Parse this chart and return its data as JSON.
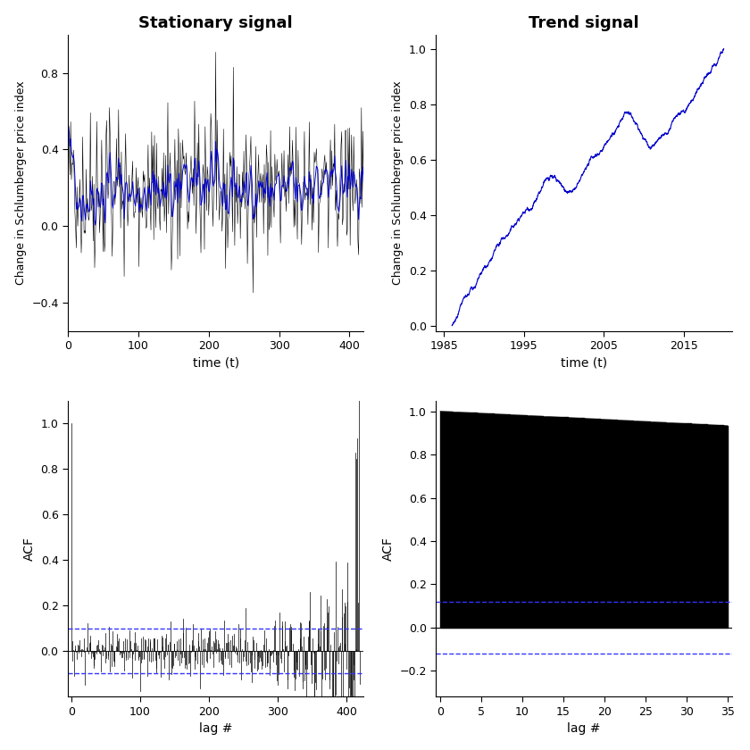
{
  "title_stationary": "Stationary signal",
  "title_trend": "Trend signal",
  "ylabel_top": "Change in Schlumberger price index",
  "xlabel_top": "time (t)",
  "xlabel_acf": "lag #",
  "ylabel_acf": "ACF",
  "stationary_n": 420,
  "stationary_ylim": [
    -0.55,
    1.0
  ],
  "stationary_xlim": [
    0,
    420
  ],
  "stationary_yticks": [
    -0.4,
    0.0,
    0.4,
    0.8
  ],
  "stationary_xticks": [
    0,
    100,
    200,
    300,
    400
  ],
  "trend_xlim": [
    1984,
    2021
  ],
  "trend_ylim": [
    -0.02,
    1.05
  ],
  "trend_xticks": [
    1985,
    1995,
    2005,
    2015
  ],
  "trend_yticks": [
    0.0,
    0.2,
    0.4,
    0.6,
    0.8,
    1.0
  ],
  "acf_stat_ylim": [
    -0.2,
    1.1
  ],
  "acf_stat_xlim": [
    -5,
    425
  ],
  "acf_stat_yticks": [
    0.0,
    0.2,
    0.4,
    0.6,
    0.8,
    1.0
  ],
  "acf_stat_xticks": [
    0,
    100,
    200,
    300,
    400
  ],
  "acf_trend_ylim": [
    -0.32,
    1.05
  ],
  "acf_trend_xlim": [
    -0.5,
    35.5
  ],
  "acf_trend_yticks": [
    -0.2,
    0.0,
    0.2,
    0.4,
    0.6,
    0.8,
    1.0
  ],
  "acf_trend_xticks": [
    0,
    5,
    10,
    15,
    20,
    25,
    30,
    35
  ],
  "conf_stat": 0.098,
  "conf_trend": 0.12,
  "blue": "#0000CC",
  "black": "#000000",
  "conf_color": "#3333FF",
  "bg": "#FFFFFF",
  "title_fs": 13,
  "label_fs": 10,
  "tick_fs": 9,
  "seed": 42
}
